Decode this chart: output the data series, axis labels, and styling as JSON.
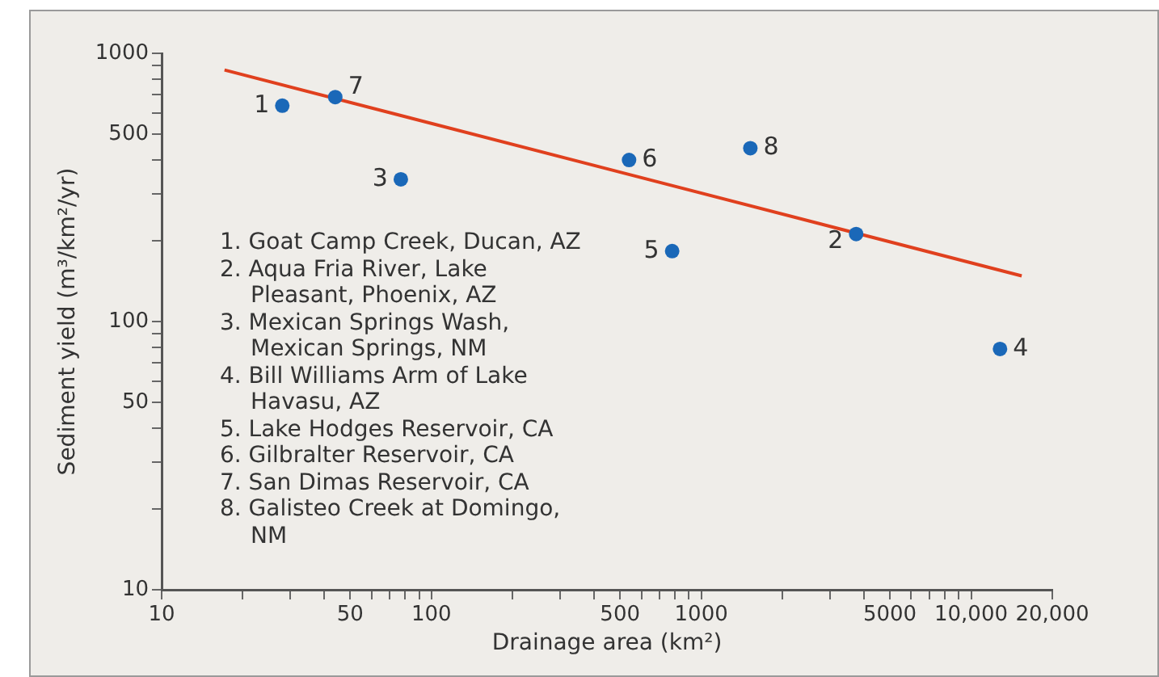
{
  "chart_data": {
    "type": "scatter",
    "xlabel": "Drainage area (km²)",
    "ylabel": "Sediment yield (m³/km²/yr)",
    "log": "xy",
    "grid": false,
    "legend": false,
    "xlim": [
      10,
      20000
    ],
    "ylim": [
      10,
      1000
    ],
    "xticks": [
      10,
      {
        "value": 20,
        "label": null
      },
      {
        "value": 30,
        "label": null
      },
      {
        "value": 40,
        "label": null
      },
      50,
      {
        "value": 60,
        "label": null
      },
      {
        "value": 70,
        "label": null
      },
      {
        "value": 80,
        "label": null
      },
      {
        "value": 90,
        "label": null
      },
      100,
      {
        "value": 200,
        "label": null
      },
      {
        "value": 300,
        "label": null
      },
      {
        "value": 400,
        "label": null
      },
      500,
      {
        "value": 600,
        "label": null
      },
      {
        "value": 700,
        "label": null
      },
      {
        "value": 800,
        "label": null
      },
      {
        "value": 900,
        "label": null
      },
      1000,
      {
        "value": 2000,
        "label": null
      },
      {
        "value": 3000,
        "label": null
      },
      {
        "value": 4000,
        "label": null
      },
      5000,
      {
        "value": 6000,
        "label": null
      },
      {
        "value": 7000,
        "label": null
      },
      {
        "value": 8000,
        "label": null
      },
      {
        "value": 9000,
        "label": null
      },
      {
        "value": 10000,
        "label": "10,000"
      },
      {
        "value": 20000,
        "label": "20,000"
      }
    ],
    "yticks": [
      10,
      {
        "value": 20,
        "label": null
      },
      {
        "value": 30,
        "label": null
      },
      {
        "value": 40,
        "label": null
      },
      50,
      {
        "value": 60,
        "label": null
      },
      {
        "value": 70,
        "label": null
      },
      {
        "value": 80,
        "label": null
      },
      {
        "value": 90,
        "label": null
      },
      100,
      {
        "value": 200,
        "label": null
      },
      {
        "value": 300,
        "label": null
      },
      {
        "value": 400,
        "label": null
      },
      500,
      {
        "value": 600,
        "label": null
      },
      {
        "value": 700,
        "label": null
      },
      {
        "value": 800,
        "label": null
      },
      {
        "value": 900,
        "label": null
      },
      1000
    ],
    "series": [
      {
        "color": "#1a68b8",
        "marker": "circle",
        "x": [
          28,
          3750,
          77,
          12800,
          780,
          540,
          44,
          1520
        ],
        "values": [
          638,
          212,
          339,
          79,
          183,
          400,
          687,
          443
        ]
      },
      {
        "type": "line",
        "color": "#e0401e",
        "marker": "none",
        "line_style": "solid",
        "x": [
          17.1,
          15400
        ],
        "values": [
          867,
          148
        ]
      }
    ],
    "annotations": [
      {
        "text": "1",
        "x": 28,
        "y": 638
      },
      {
        "text": "2",
        "x": 3750,
        "y": 212
      },
      {
        "text": "3",
        "x": 77,
        "y": 339
      },
      {
        "text": "4",
        "x": 12800,
        "y": 79
      },
      {
        "text": "5",
        "x": 780,
        "y": 183
      },
      {
        "text": "6",
        "x": 540,
        "y": 400
      },
      {
        "text": "7",
        "x": 44,
        "y": 687
      },
      {
        "text": "8",
        "x": 1520,
        "y": 443
      },
      "1. Goat Camp Creek, Ducan, AZ",
      "2. Aqua Fria River, Lake Pleasant, Phoenix, AZ",
      "3. Mexican Springs Wash, Mexican Springs, NM",
      "4. Bill Williams Arm of Lake Havasu, AZ",
      "5. Lake Hodges Reservoir, CA",
      "6. Gilbralter Reservoir, CA",
      "7. San Dimas Reservoir, CA",
      "8. Galisteo Creek at Domingo, NM"
    ]
  }
}
